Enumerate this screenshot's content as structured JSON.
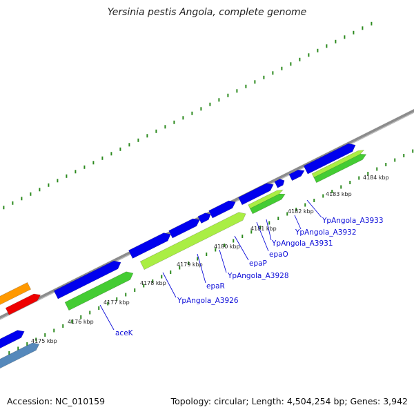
{
  "title": "Yersinia pestis Angola, complete genome",
  "footer": {
    "accession": "Accession: NC_010159",
    "topology": "Topology: circular; Length: 4,504,254 bp; Genes: 3,942"
  },
  "colors": {
    "backbone": "#8c8c8c",
    "gc_ticks": "#2c8a1e",
    "cds_forward": "#0000ee",
    "gene_green": "#44cc33",
    "gene_lime": "#aaee44",
    "orange": "#ff9900",
    "red": "#ee0000",
    "steel": "#5588bb",
    "label": "#0b0bd8"
  },
  "axis_ticks": [
    {
      "id": "t4175",
      "label": "4175 kbp"
    },
    {
      "id": "t4176",
      "label": "4176 kbp"
    },
    {
      "id": "t4177",
      "label": "4177 kbp"
    },
    {
      "id": "t4178",
      "label": "4178 kbp"
    },
    {
      "id": "t4179",
      "label": "4179 kbp"
    },
    {
      "id": "t4180",
      "label": "4180 kbp"
    },
    {
      "id": "t4181",
      "label": "4181 kbp"
    },
    {
      "id": "t4182",
      "label": "4182 kbp"
    },
    {
      "id": "t4183",
      "label": "4183 kbp"
    },
    {
      "id": "t4184",
      "label": "4184 kbp"
    }
  ],
  "gene_labels": [
    {
      "id": "aceK",
      "text": "aceK"
    },
    {
      "id": "A3926",
      "text": "YpAngola_A3926"
    },
    {
      "id": "epaR",
      "text": "epaR"
    },
    {
      "id": "A3928",
      "text": "YpAngola_A3928"
    },
    {
      "id": "epaP",
      "text": "epaP"
    },
    {
      "id": "epaO",
      "text": "epaO"
    },
    {
      "id": "A3931",
      "text": "YpAngola_A3931"
    },
    {
      "id": "A3932",
      "text": "YpAngola_A3932"
    },
    {
      "id": "A3933",
      "text": "YpAngola_A3933"
    }
  ]
}
